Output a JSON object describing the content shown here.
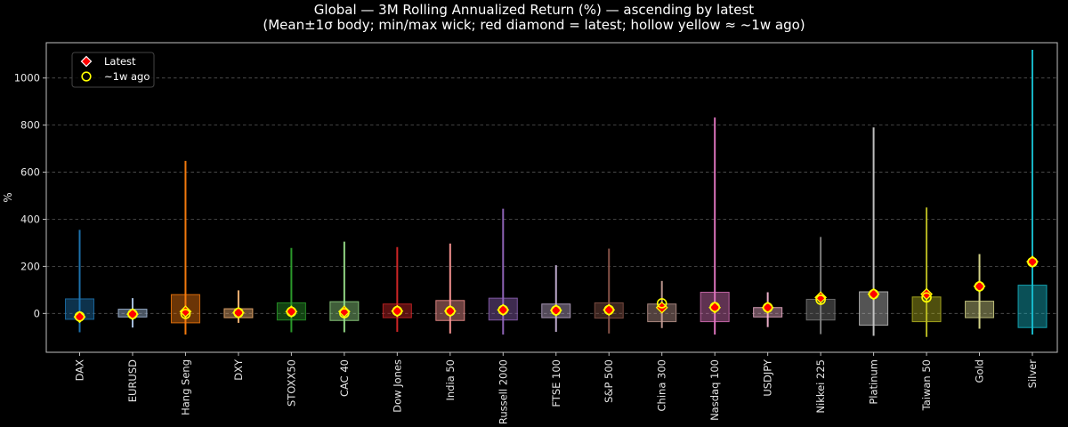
{
  "chart_data": {
    "type": "box",
    "title": "Global — 3M Rolling Annualized Return (%) — ascending by latest",
    "subtitle": "(Mean±1σ body; min/max wick; red diamond = latest; hollow yellow ≈ ~1w ago)",
    "xlabel": "",
    "ylabel": "%",
    "ylim": [
      -165,
      1150
    ],
    "yticks": [
      0,
      200,
      400,
      600,
      800,
      1000
    ],
    "grid": true,
    "legend": {
      "placement": "top-left",
      "latest_label": "Latest",
      "week_ago_label": "~1w ago"
    },
    "series": [
      {
        "name": "DAX",
        "color": "#1f77b4",
        "min": -80,
        "max": 355,
        "body_low": -25,
        "body_high": 62,
        "latest": -15,
        "week_ago": -13
      },
      {
        "name": "EURUSD",
        "color": "#aec7e8",
        "min": -60,
        "max": 65,
        "body_low": -15,
        "body_high": 18,
        "latest": -3,
        "week_ago": -3
      },
      {
        "name": "Hang Seng",
        "color": "#ff7f0e",
        "min": -90,
        "max": 648,
        "body_low": -40,
        "body_high": 80,
        "latest": 8,
        "week_ago": -2
      },
      {
        "name": "DXY",
        "color": "#ffbb78",
        "min": -40,
        "max": 98,
        "body_low": -18,
        "body_high": 20,
        "latest": 3,
        "week_ago": 3
      },
      {
        "name": "STOXX50",
        "color": "#2ca02c",
        "min": -80,
        "max": 278,
        "body_low": -28,
        "body_high": 45,
        "latest": 8,
        "week_ago": 7
      },
      {
        "name": "CAC 40",
        "color": "#98df8a",
        "min": -80,
        "max": 305,
        "body_low": -30,
        "body_high": 50,
        "latest": 8,
        "week_ago": 1
      },
      {
        "name": "Dow Jones",
        "color": "#d62728",
        "min": -78,
        "max": 282,
        "body_low": -18,
        "body_high": 40,
        "latest": 10,
        "week_ago": 10
      },
      {
        "name": "India 50",
        "color": "#ff9896",
        "min": -85,
        "max": 297,
        "body_low": -30,
        "body_high": 55,
        "latest": 10,
        "week_ago": 10
      },
      {
        "name": "Russell 2000",
        "color": "#9467bd",
        "min": -90,
        "max": 445,
        "body_low": -28,
        "body_high": 65,
        "latest": 15,
        "week_ago": 15
      },
      {
        "name": "FTSE 100",
        "color": "#c5b0d5",
        "min": -78,
        "max": 205,
        "body_low": -18,
        "body_high": 40,
        "latest": 13,
        "week_ago": 13
      },
      {
        "name": "S&P 500",
        "color": "#8c564b",
        "min": -85,
        "max": 275,
        "body_low": -20,
        "body_high": 45,
        "latest": 15,
        "week_ago": 15
      },
      {
        "name": "China 300",
        "color": "#c49c94",
        "min": -62,
        "max": 138,
        "body_low": -35,
        "body_high": 40,
        "latest": 25,
        "week_ago": 43
      },
      {
        "name": "Nasdaq 100",
        "color": "#e377c2",
        "min": -90,
        "max": 832,
        "body_low": -35,
        "body_high": 90,
        "latest": 25,
        "week_ago": 27
      },
      {
        "name": "USDJPY",
        "color": "#f7b6d2",
        "min": -58,
        "max": 90,
        "body_low": -15,
        "body_high": 25,
        "latest": 25,
        "week_ago": 25
      },
      {
        "name": "Nikkei 225",
        "color": "#7f7f7f",
        "min": -88,
        "max": 325,
        "body_low": -28,
        "body_high": 60,
        "latest": 68,
        "week_ago": 58
      },
      {
        "name": "Platinum",
        "color": "#c7c7c7",
        "min": -95,
        "max": 790,
        "body_low": -50,
        "body_high": 92,
        "latest": 82,
        "week_ago": 82
      },
      {
        "name": "Taiwan 50",
        "color": "#bcbd22",
        "min": -100,
        "max": 450,
        "body_low": -35,
        "body_high": 70,
        "latest": 82,
        "week_ago": 68
      },
      {
        "name": "Gold",
        "color": "#dbdb8d",
        "min": -65,
        "max": 252,
        "body_low": -18,
        "body_high": 52,
        "latest": 115,
        "week_ago": 115
      },
      {
        "name": "Silver",
        "color": "#17becf",
        "min": -90,
        "max": 1120,
        "body_low": -60,
        "body_high": 120,
        "latest": 220,
        "week_ago": 218
      }
    ]
  }
}
